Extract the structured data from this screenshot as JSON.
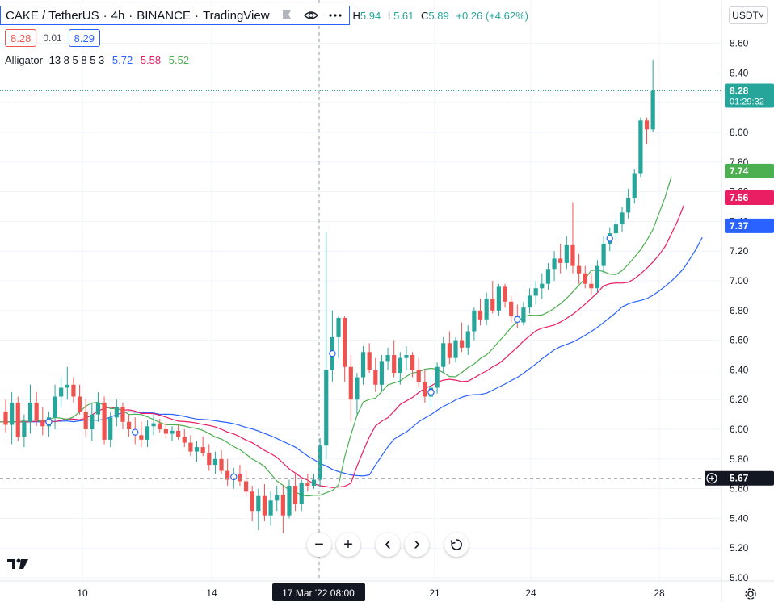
{
  "header": {
    "symbol": "CAKE / TetherUS",
    "interval": "4h",
    "exchange": "BINANCE",
    "platform": "TradingView",
    "sep": "·",
    "ohlc": {
      "h_label": "H",
      "h": "5.94",
      "l_label": "L",
      "l": "5.61",
      "c_label": "C",
      "c": "5.89",
      "change": "+0.26 (+4.62%)"
    },
    "sell_price": "8.28",
    "spread": "0.01",
    "buy_price": "8.29",
    "indicator": {
      "name": "Alligator",
      "params": "13 8 5 8 5 3",
      "jaw": "5.72",
      "teeth": "5.58",
      "lips": "5.52"
    }
  },
  "currency_button": "USDT˅",
  "price_axis": {
    "ticks": [
      "8.60",
      "8.40",
      "8.20",
      "8.00",
      "7.80",
      "7.60",
      "7.40",
      "7.20",
      "7.00",
      "6.80",
      "6.60",
      "6.40",
      "6.20",
      "6.00",
      "5.80",
      "5.60",
      "5.40",
      "5.20",
      "5.00"
    ],
    "current_price": "8.28",
    "countdown": "01:29:32",
    "lips_tag": "7.74",
    "teeth_tag": "7.56",
    "jaw_tag": "7.37",
    "crosshair_price": "5.67"
  },
  "time_axis": {
    "labels": [
      "10",
      "14",
      "21",
      "24",
      "28"
    ],
    "crosshair_label": "17 Mar '22   08:00"
  },
  "controls": {
    "zoom_out": "−",
    "zoom_in": "+",
    "scroll_left": "‹",
    "scroll_right": "›",
    "reset": "reset-icon"
  },
  "colors": {
    "up": "#26a69a",
    "down": "#ef5350",
    "jaw": "#2962ff",
    "teeth": "#e91e63",
    "lips": "#4caf50",
    "grid": "#f0f3fa",
    "axis_text": "#131722"
  },
  "chart_data": {
    "type": "candlestick",
    "symbol": "CAKE/USDT",
    "interval": "4h",
    "ylim": [
      5.0,
      8.65
    ],
    "candles": [
      [
        6.12,
        6.2,
        5.98,
        6.03
      ],
      [
        6.03,
        6.25,
        5.9,
        6.18
      ],
      [
        6.18,
        6.22,
        5.92,
        5.95
      ],
      [
        5.95,
        6.1,
        5.88,
        6.05
      ],
      [
        6.05,
        6.3,
        5.97,
        6.18
      ],
      [
        6.18,
        6.25,
        6.02,
        6.06
      ],
      [
        6.06,
        6.15,
        5.96,
        6.02
      ],
      [
        6.02,
        6.12,
        5.95,
        6.08
      ],
      [
        6.08,
        6.3,
        6.0,
        6.22
      ],
      [
        6.22,
        6.35,
        6.15,
        6.28
      ],
      [
        6.28,
        6.42,
        6.2,
        6.3
      ],
      [
        6.3,
        6.35,
        6.18,
        6.22
      ],
      [
        6.22,
        6.3,
        6.1,
        6.12
      ],
      [
        6.12,
        6.2,
        5.95,
        6.0
      ],
      [
        6.0,
        6.18,
        5.92,
        6.1
      ],
      [
        6.1,
        6.25,
        6.05,
        6.18
      ],
      [
        6.18,
        6.22,
        5.9,
        5.93
      ],
      [
        5.93,
        6.12,
        5.88,
        6.08
      ],
      [
        6.08,
        6.2,
        6.02,
        6.15
      ],
      [
        6.15,
        6.18,
        6.0,
        6.05
      ],
      [
        6.05,
        6.1,
        5.95,
        6.0
      ],
      [
        6.0,
        6.08,
        5.9,
        5.96
      ],
      [
        5.96,
        6.05,
        5.88,
        5.93
      ],
      [
        5.93,
        6.06,
        5.88,
        6.02
      ],
      [
        6.02,
        6.1,
        5.96,
        6.04
      ],
      [
        6.04,
        6.07,
        5.98,
        6.0
      ],
      [
        6.0,
        6.05,
        5.94,
        5.97
      ],
      [
        5.97,
        6.02,
        5.92,
        5.99
      ],
      [
        5.99,
        6.03,
        5.93,
        5.95
      ],
      [
        5.95,
        6.0,
        5.88,
        5.91
      ],
      [
        5.91,
        5.96,
        5.82,
        5.85
      ],
      [
        5.85,
        5.92,
        5.78,
        5.88
      ],
      [
        5.88,
        5.95,
        5.82,
        5.84
      ],
      [
        5.84,
        5.9,
        5.72,
        5.76
      ],
      [
        5.76,
        5.85,
        5.7,
        5.8
      ],
      [
        5.8,
        5.86,
        5.7,
        5.72
      ],
      [
        5.72,
        5.8,
        5.62,
        5.66
      ],
      [
        5.66,
        5.74,
        5.6,
        5.7
      ],
      [
        5.7,
        5.76,
        5.62,
        5.65
      ],
      [
        5.65,
        5.72,
        5.55,
        5.58
      ],
      [
        5.58,
        5.62,
        5.38,
        5.45
      ],
      [
        5.45,
        5.6,
        5.32,
        5.55
      ],
      [
        5.55,
        5.63,
        5.38,
        5.42
      ],
      [
        5.42,
        5.58,
        5.35,
        5.52
      ],
      [
        5.52,
        5.62,
        5.45,
        5.56
      ],
      [
        5.56,
        5.62,
        5.3,
        5.42
      ],
      [
        5.42,
        5.66,
        5.4,
        5.62
      ],
      [
        5.62,
        5.7,
        5.45,
        5.5
      ],
      [
        5.5,
        5.66,
        5.45,
        5.64
      ],
      [
        5.64,
        5.7,
        5.58,
        5.62
      ],
      [
        5.62,
        5.7,
        5.6,
        5.66
      ],
      [
        5.66,
        5.94,
        5.61,
        5.89
      ],
      [
        5.89,
        7.33,
        5.8,
        6.4
      ],
      [
        6.4,
        6.8,
        6.32,
        6.62
      ],
      [
        6.62,
        6.76,
        6.48,
        6.75
      ],
      [
        6.75,
        6.76,
        6.32,
        6.42
      ],
      [
        6.42,
        6.5,
        6.05,
        6.2
      ],
      [
        6.2,
        6.38,
        6.1,
        6.35
      ],
      [
        6.35,
        6.56,
        6.3,
        6.52
      ],
      [
        6.52,
        6.58,
        6.38,
        6.4
      ],
      [
        6.4,
        6.48,
        6.25,
        6.3
      ],
      [
        6.3,
        6.5,
        6.26,
        6.46
      ],
      [
        6.46,
        6.55,
        6.4,
        6.5
      ],
      [
        6.5,
        6.6,
        6.35,
        6.38
      ],
      [
        6.38,
        6.52,
        6.3,
        6.48
      ],
      [
        6.48,
        6.56,
        6.4,
        6.5
      ],
      [
        6.5,
        6.52,
        6.35,
        6.4
      ],
      [
        6.4,
        6.48,
        6.28,
        6.32
      ],
      [
        6.32,
        6.4,
        6.18,
        6.22
      ],
      [
        6.22,
        6.35,
        6.15,
        6.28
      ],
      [
        6.28,
        6.45,
        6.24,
        6.42
      ],
      [
        6.42,
        6.62,
        6.38,
        6.58
      ],
      [
        6.58,
        6.66,
        6.44,
        6.48
      ],
      [
        6.48,
        6.62,
        6.45,
        6.6
      ],
      [
        6.6,
        6.72,
        6.52,
        6.55
      ],
      [
        6.55,
        6.7,
        6.5,
        6.66
      ],
      [
        6.66,
        6.82,
        6.6,
        6.8
      ],
      [
        6.8,
        6.88,
        6.7,
        6.74
      ],
      [
        6.74,
        6.92,
        6.7,
        6.88
      ],
      [
        6.88,
        7.0,
        6.78,
        6.8
      ],
      [
        6.8,
        6.98,
        6.76,
        6.96
      ],
      [
        6.96,
        6.98,
        6.82,
        6.86
      ],
      [
        6.86,
        6.9,
        6.72,
        6.76
      ],
      [
        6.76,
        6.84,
        6.68,
        6.72
      ],
      [
        6.72,
        6.86,
        6.7,
        6.82
      ],
      [
        6.82,
        6.95,
        6.78,
        6.9
      ],
      [
        6.9,
        7.0,
        6.84,
        6.95
      ],
      [
        6.95,
        7.05,
        6.88,
        6.98
      ],
      [
        6.98,
        7.12,
        6.94,
        7.08
      ],
      [
        7.08,
        7.2,
        7.0,
        7.15
      ],
      [
        7.15,
        7.25,
        7.05,
        7.12
      ],
      [
        7.12,
        7.3,
        7.08,
        7.24
      ],
      [
        7.24,
        7.53,
        7.05,
        7.1
      ],
      [
        7.1,
        7.18,
        6.98,
        7.05
      ],
      [
        7.05,
        7.1,
        6.95,
        6.98
      ],
      [
        6.98,
        7.05,
        6.9,
        6.95
      ],
      [
        6.95,
        7.14,
        6.92,
        7.1
      ],
      [
        7.1,
        7.3,
        7.05,
        7.25
      ],
      [
        7.25,
        7.36,
        7.2,
        7.32
      ],
      [
        7.32,
        7.42,
        7.28,
        7.38
      ],
      [
        7.38,
        7.5,
        7.33,
        7.46
      ],
      [
        7.46,
        7.62,
        7.42,
        7.56
      ],
      [
        7.56,
        7.75,
        7.52,
        7.72
      ],
      [
        7.72,
        8.1,
        7.7,
        8.08
      ],
      [
        8.08,
        8.1,
        7.92,
        8.02
      ],
      [
        8.02,
        8.49,
        8.0,
        8.28
      ]
    ],
    "annotations": [
      {
        "label": "dividend/event marker",
        "bar": 7
      },
      {
        "label": "dividend/event marker",
        "bar": 21
      },
      {
        "label": "dividend/event marker",
        "bar": 37
      },
      {
        "label": "dividend/event marker",
        "bar": 53
      },
      {
        "label": "dividend/event marker",
        "bar": 69
      },
      {
        "label": "dividend/event marker",
        "bar": 83
      },
      {
        "label": "dividend/event marker",
        "bar": 98
      }
    ],
    "alligator": {
      "jaw_last": 7.37,
      "teeth_last": 7.56,
      "lips_last": 7.74
    }
  }
}
